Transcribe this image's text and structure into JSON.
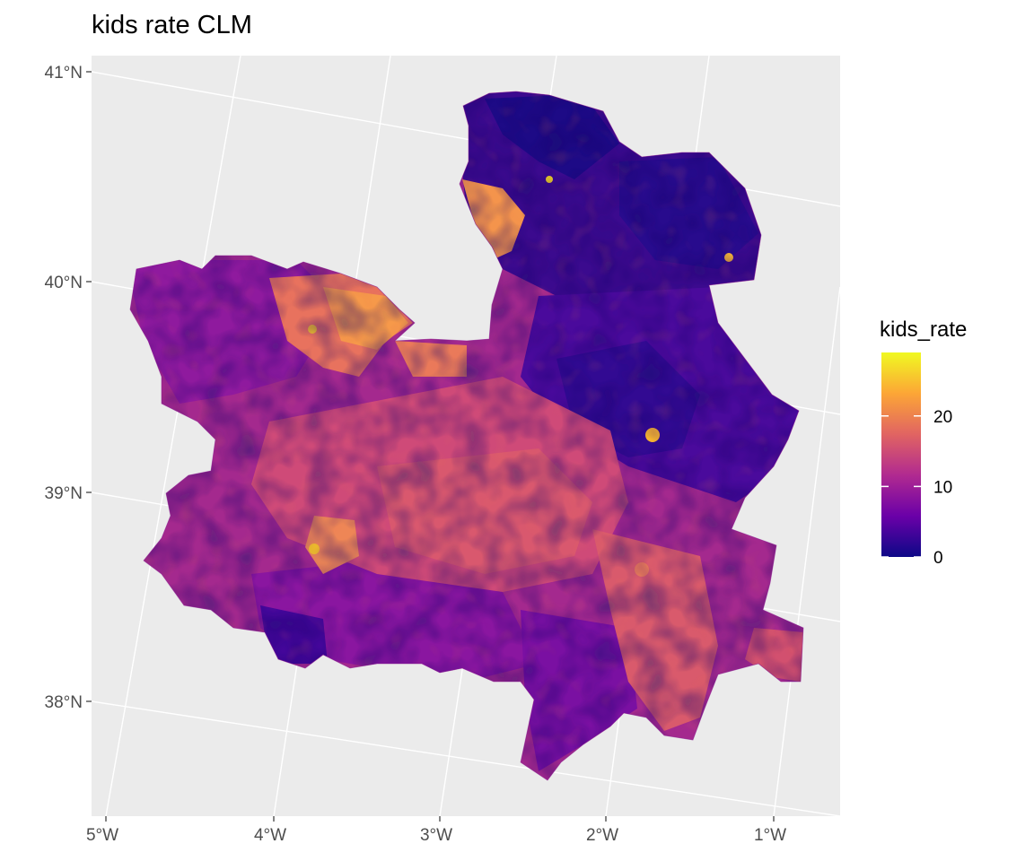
{
  "title": "kids rate CLM",
  "chart_data": {
    "type": "choropleth",
    "title": "kids rate CLM",
    "fill_variable": "kids_rate",
    "palette": "plasma",
    "colors": [
      "#0d0887",
      "#6a00a8",
      "#b12a90",
      "#e16462",
      "#fca636",
      "#f0f921"
    ],
    "lon_ticks": [
      "5°W",
      "4°W",
      "3°W",
      "2°W",
      "1°W"
    ],
    "lat_ticks": [
      "41°N",
      "40°N",
      "39°N",
      "38°N"
    ],
    "lon_range": [
      -5.0,
      -0.6
    ],
    "lat_range": [
      37.5,
      41.05
    ],
    "grid": true,
    "panel_background": "#ebebeb",
    "legend": {
      "title": "kids_rate",
      "position": "right",
      "type": "colorbar",
      "range": [
        0,
        29
      ],
      "breaks": [
        0,
        10,
        20
      ],
      "labels": [
        "0",
        "10",
        "20"
      ]
    }
  }
}
